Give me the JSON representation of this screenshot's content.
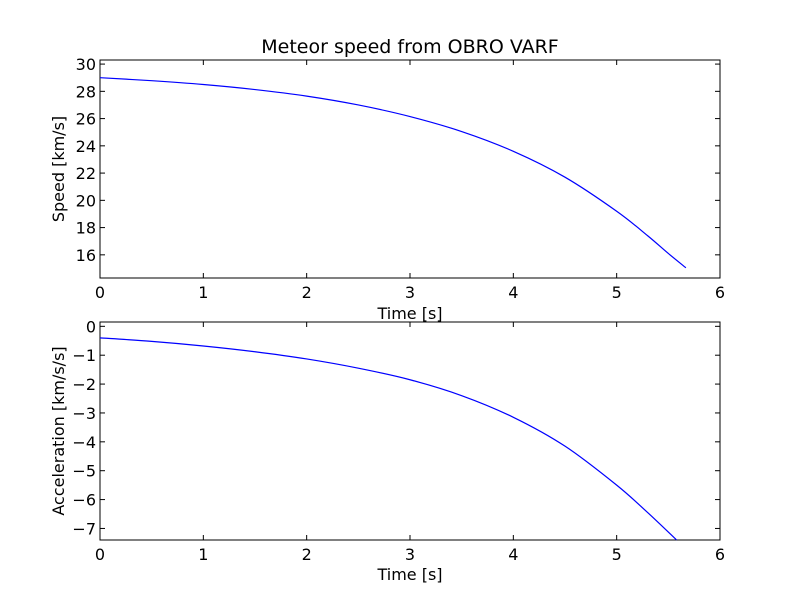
{
  "title": "Meteor speed from  OBRO VARF",
  "chart_data": [
    {
      "type": "line",
      "xlabel": "Time [s]",
      "ylabel": "Speed [km/s]",
      "xlim": [
        0,
        6
      ],
      "ylim": [
        14.3,
        30.3
      ],
      "xticks": [
        "0",
        "1",
        "2",
        "3",
        "4",
        "5",
        "6"
      ],
      "yticks": [
        "16",
        "18",
        "20",
        "22",
        "24",
        "26",
        "28",
        "30"
      ],
      "grid": false,
      "color": "#0000ff",
      "series": [
        {
          "x": [
            0,
            0.5,
            1,
            1.5,
            2,
            2.5,
            3,
            3.5,
            4,
            4.5,
            5,
            5.3,
            5.5,
            5.67
          ],
          "y": [
            29.0,
            28.78,
            28.5,
            28.13,
            27.65,
            27.0,
            26.15,
            25.05,
            23.6,
            21.7,
            19.2,
            17.4,
            16.1,
            15.05
          ]
        }
      ]
    },
    {
      "type": "line",
      "xlabel": "Time [s]",
      "ylabel": "Acceleration [km/s/s]",
      "xlim": [
        0,
        6
      ],
      "ylim": [
        -7.4,
        0.15
      ],
      "xticks": [
        "0",
        "1",
        "2",
        "3",
        "4",
        "5",
        "6"
      ],
      "yticks": [
        "0",
        "−1",
        "−2",
        "−3",
        "−4",
        "−5",
        "−6",
        "−7"
      ],
      "grid": false,
      "color": "#0000ff",
      "series": [
        {
          "x": [
            0,
            0.5,
            1,
            1.5,
            2,
            2.5,
            3,
            3.5,
            4,
            4.5,
            5,
            5.3,
            5.58
          ],
          "y": [
            -0.4,
            -0.52,
            -0.68,
            -0.88,
            -1.13,
            -1.45,
            -1.85,
            -2.4,
            -3.15,
            -4.15,
            -5.5,
            -6.45,
            -7.4
          ]
        }
      ]
    }
  ]
}
